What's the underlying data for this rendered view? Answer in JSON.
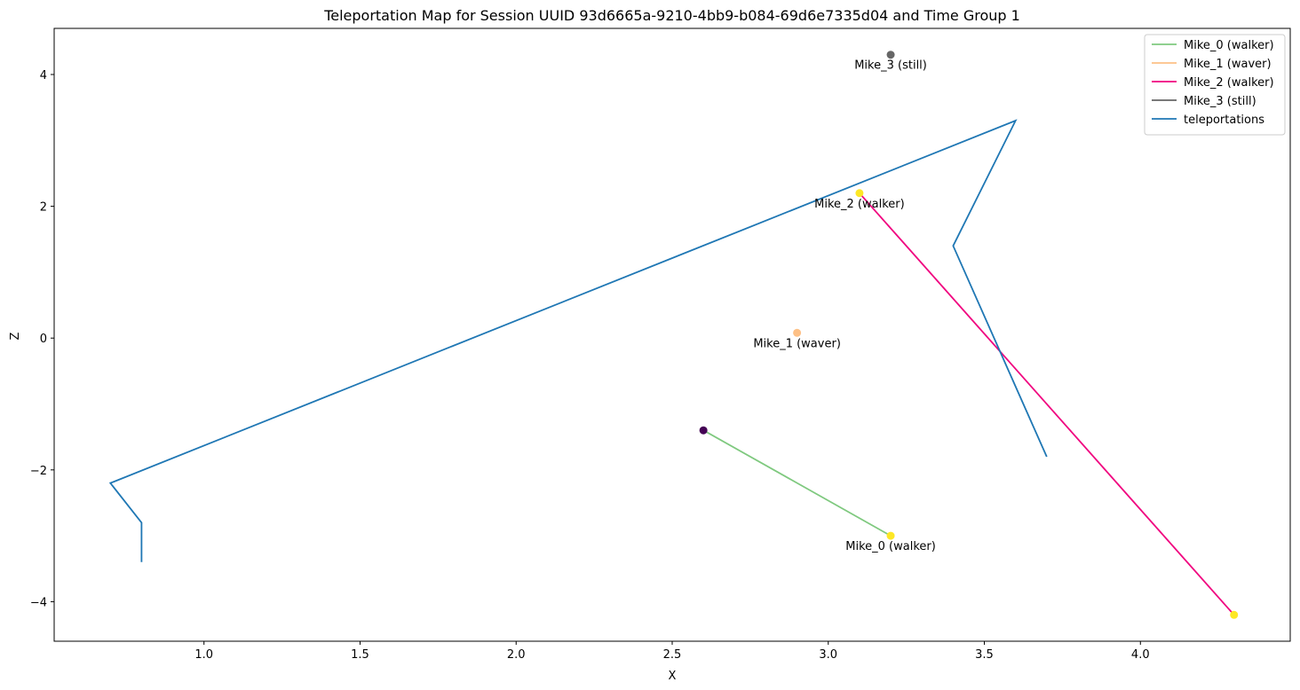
{
  "chart_data": {
    "type": "line",
    "title": "Teleportation Map for Session UUID 93d6665a-9210-4bb9-b084-69d6e7335d04 and Time Group 1",
    "xlabel": "X",
    "ylabel": "Z",
    "xlim": [
      0.52,
      4.48
    ],
    "ylim": [
      -4.6,
      4.7
    ],
    "xticks": [
      1.0,
      1.5,
      2.0,
      2.5,
      3.0,
      3.5,
      4.0
    ],
    "xtick_labels": [
      "1.0",
      "1.5",
      "2.0",
      "2.5",
      "3.0",
      "3.5",
      "4.0"
    ],
    "yticks": [
      -4,
      -2,
      0,
      2,
      4
    ],
    "ytick_labels": [
      "−4",
      "−2",
      "0",
      "2",
      "4"
    ],
    "grid": false,
    "legend_position": "top-right",
    "series": [
      {
        "name": "Mike_0 (walker)",
        "color": "#7fc97f",
        "x": [
          2.6,
          3.2
        ],
        "y": [
          -1.4,
          -3.0
        ],
        "start_color": "#440154",
        "end_color": "#fde725",
        "label": "Mike_0 (walker)",
        "label_at": [
          3.2,
          -3.0
        ]
      },
      {
        "name": "Mike_1 (waver)",
        "color": "#fdc086",
        "x": [
          2.9
        ],
        "y": [
          0.08
        ],
        "start_color": "#fdc086",
        "end_color": "#fdc086",
        "label": "Mike_1 (waver)",
        "label_at": [
          2.9,
          0.08
        ]
      },
      {
        "name": "Mike_2 (walker)",
        "color": "#f0027f",
        "x": [
          3.1,
          4.3
        ],
        "y": [
          2.2,
          -4.2
        ],
        "start_color": "#fde725",
        "end_color": "#fde725",
        "label": "Mike_2 (walker)",
        "label_at": [
          3.1,
          2.2
        ]
      },
      {
        "name": "Mike_3 (still)",
        "color": "#666666",
        "x": [
          3.2
        ],
        "y": [
          4.3
        ],
        "start_color": "#666666",
        "end_color": "#666666",
        "label": "Mike_3 (still)",
        "label_at": [
          3.2,
          4.3
        ]
      },
      {
        "name": "teleportations",
        "color": "#1f77b4",
        "x": [
          0.8,
          0.8,
          0.7,
          3.6,
          3.4,
          3.7
        ],
        "y": [
          -3.4,
          -2.8,
          -2.2,
          3.3,
          1.4,
          -1.8
        ]
      }
    ]
  }
}
